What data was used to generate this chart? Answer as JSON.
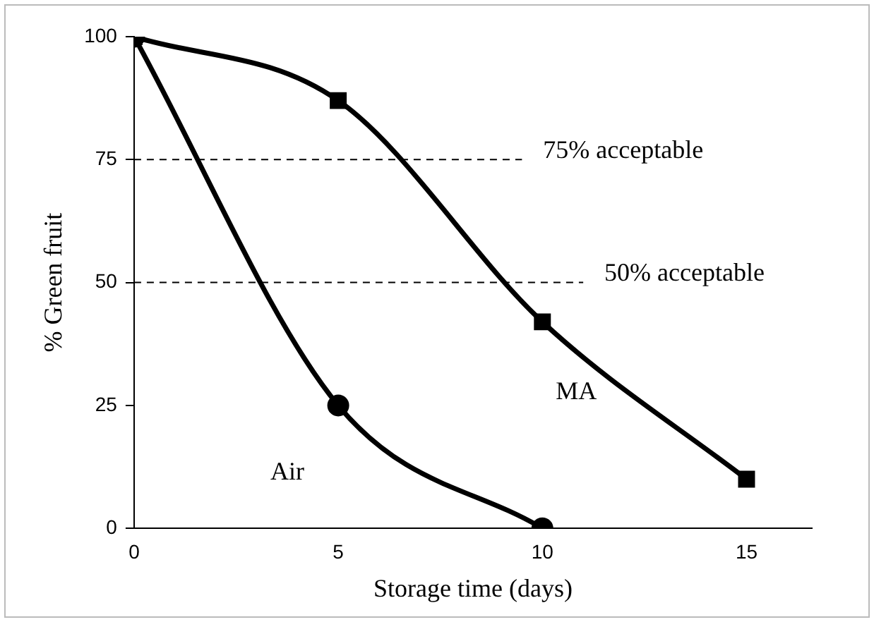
{
  "chart_data": {
    "type": "line",
    "xlabel": "Storage time (days)",
    "ylabel": "% Green fruit",
    "xlim": [
      0,
      16.6
    ],
    "xticks": [
      0,
      5,
      10,
      15
    ],
    "ylim": [
      0,
      100
    ],
    "yticks": [
      0,
      25,
      50,
      75,
      100
    ],
    "grid": false,
    "legend": false,
    "line_style": "solid",
    "series": [
      {
        "name": "Air",
        "color": "#000000",
        "marker": "circle",
        "x": [
          0,
          5,
          10
        ],
        "values": [
          100,
          25,
          0
        ]
      },
      {
        "name": "MA",
        "color": "#000000",
        "marker": "square",
        "x": [
          0,
          5,
          10,
          15
        ],
        "values": [
          100,
          87,
          42,
          10
        ]
      }
    ],
    "ref_lines": [
      {
        "axis": "y",
        "value": 75,
        "label": "75% acceptable",
        "color": "#000000",
        "line_style": "dashed"
      },
      {
        "axis": "y",
        "value": 50,
        "label": "50% acceptable",
        "color": "#000000",
        "line_style": "dashed"
      }
    ]
  }
}
